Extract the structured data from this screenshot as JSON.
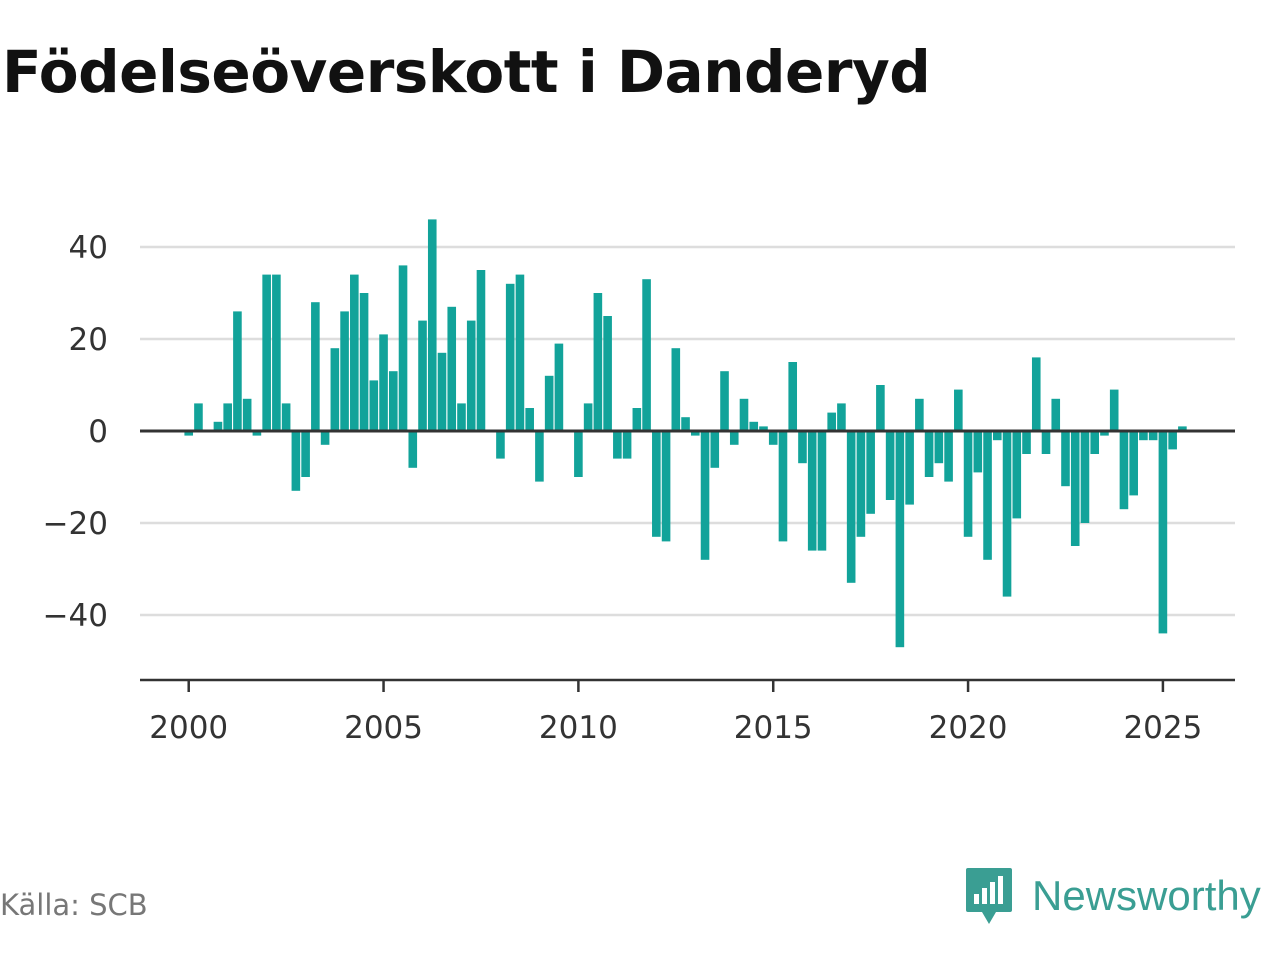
{
  "chart_data": {
    "type": "bar",
    "title": "Födelseöverskott i Danderyd",
    "xlabel": "",
    "ylabel": "",
    "x_range": [
      1998.75,
      2026.85
    ],
    "ylim": [
      -54,
      56
    ],
    "y_ticks": [
      40,
      20,
      0,
      -20,
      -40
    ],
    "y_tick_labels": [
      "40",
      "20",
      "0",
      "−20",
      "−40"
    ],
    "x_ticks": [
      2000,
      2005,
      2010,
      2015,
      2020,
      2025
    ],
    "x_tick_labels": [
      "2000",
      "2005",
      "2010",
      "2015",
      "2020",
      "2025"
    ],
    "grid": true,
    "color": "#12a39a",
    "periods": [
      "2000-01",
      "2000-04",
      "2000-07",
      "2000-10",
      "2001-01",
      "2001-04",
      "2001-07",
      "2001-10",
      "2002-01",
      "2002-04",
      "2002-07",
      "2002-10",
      "2003-01",
      "2003-04",
      "2003-07",
      "2003-10",
      "2004-01",
      "2004-04",
      "2004-07",
      "2004-10",
      "2005-01",
      "2005-04",
      "2005-07",
      "2005-10",
      "2006-01",
      "2006-04",
      "2006-07",
      "2006-10",
      "2007-01",
      "2007-04",
      "2007-07",
      "2007-10",
      "2008-01",
      "2008-04",
      "2008-07",
      "2008-10",
      "2009-01",
      "2009-04",
      "2009-07",
      "2009-10",
      "2010-01",
      "2010-04",
      "2010-07",
      "2010-10",
      "2011-01",
      "2011-04",
      "2011-07",
      "2011-10",
      "2012-01",
      "2012-04",
      "2012-07",
      "2012-10",
      "2013-01",
      "2013-04",
      "2013-07",
      "2013-10",
      "2014-01",
      "2014-04",
      "2014-07",
      "2014-10",
      "2015-01",
      "2015-04",
      "2015-07",
      "2015-10",
      "2016-01",
      "2016-04",
      "2016-07",
      "2016-10",
      "2017-01",
      "2017-04",
      "2017-07",
      "2017-10",
      "2018-01",
      "2018-04",
      "2018-07",
      "2018-10",
      "2019-01",
      "2019-04",
      "2019-07",
      "2019-10",
      "2020-01",
      "2020-04",
      "2020-07",
      "2020-10",
      "2021-01",
      "2021-04",
      "2021-07",
      "2021-10",
      "2022-01",
      "2022-04",
      "2022-07",
      "2022-10",
      "2023-01",
      "2023-04",
      "2023-07",
      "2023-10",
      "2024-01",
      "2024-04",
      "2024-07",
      "2024-10",
      "2025-01",
      "2025-04",
      "2025-07"
    ],
    "values": [
      -1,
      6,
      0,
      2,
      6,
      26,
      7,
      -1,
      34,
      34,
      6,
      -13,
      -10,
      28,
      -3,
      18,
      26,
      34,
      30,
      11,
      21,
      13,
      36,
      -8,
      24,
      46,
      17,
      27,
      6,
      24,
      35,
      0,
      -6,
      32,
      34,
      5,
      -11,
      12,
      19,
      0,
      -10,
      6,
      30,
      25,
      -6,
      -6,
      5,
      33,
      -23,
      -24,
      18,
      3,
      -1,
      -28,
      -8,
      13,
      -3,
      7,
      2,
      1,
      -3,
      -24,
      15,
      -7,
      -26,
      -26,
      4,
      6,
      -33,
      -23,
      -18,
      10,
      -15,
      -47,
      -16,
      7,
      -10,
      -7,
      -11,
      9,
      -23,
      -9,
      -28,
      -2,
      -36,
      -19,
      -5,
      16,
      -5,
      7,
      -12,
      -25,
      -20,
      -5,
      -1,
      9,
      -17,
      -14,
      -2,
      -2,
      -44,
      -4,
      1
    ]
  },
  "source": "Källa: SCB",
  "brand": {
    "name": "Newsworthy",
    "icon": "newsworthy-logo-icon",
    "color": "#3a9e93"
  }
}
